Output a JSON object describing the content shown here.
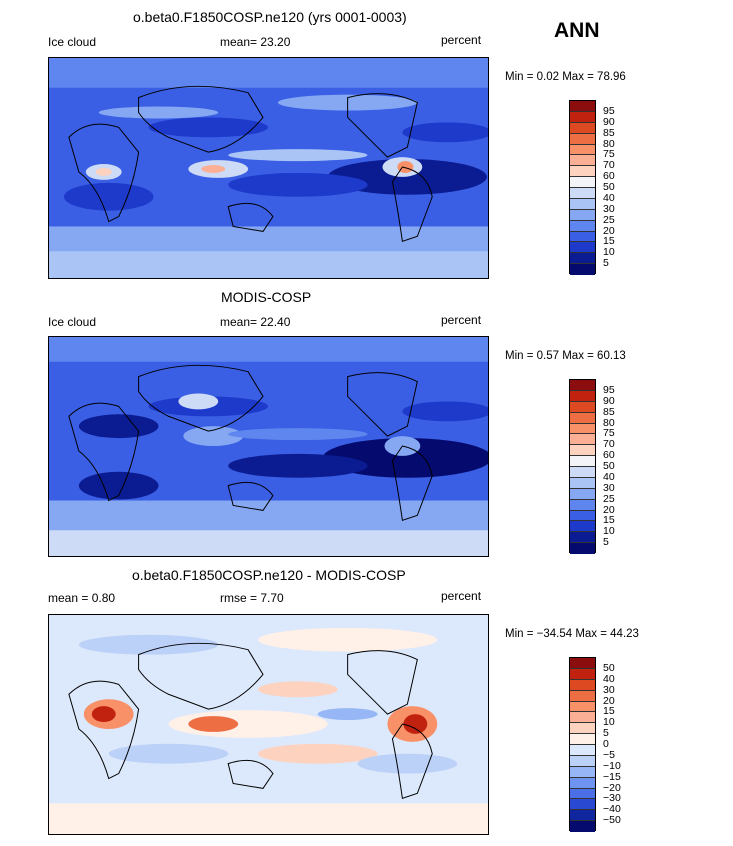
{
  "season": "ANN",
  "panels": [
    {
      "title": "o.beta0.F1850COSP.ne120 (yrs 0001-0003)",
      "left_label": "Ice cloud",
      "center_label": "mean=  23.20",
      "right_label": "percent",
      "minmax": "Min =    0.02 Max =  78.96",
      "colorbar": {
        "labels": [
          "95",
          "90",
          "85",
          "80",
          "75",
          "70",
          "60",
          "50",
          "40",
          "30",
          "25",
          "20",
          "15",
          "10",
          "5"
        ],
        "colors": [
          "#8c0d0d",
          "#c1220f",
          "#dd4a22",
          "#ee6e43",
          "#f89068",
          "#fbb095",
          "#fdd2bf",
          "#f2f4f8",
          "#cddbf6",
          "#a9c4f5",
          "#86a8f3",
          "#5f85ee",
          "#3a5fe4",
          "#1d3acb",
          "#0b1c93",
          "#050b6e"
        ]
      }
    },
    {
      "title": "MODIS-COSP",
      "left_label": "Ice cloud",
      "center_label": "mean=  22.40",
      "right_label": "percent",
      "minmax": "Min =    0.57 Max =  60.13",
      "colorbar": {
        "labels": [
          "95",
          "90",
          "85",
          "80",
          "75",
          "70",
          "60",
          "50",
          "40",
          "30",
          "25",
          "20",
          "15",
          "10",
          "5"
        ],
        "colors": [
          "#8c0d0d",
          "#c1220f",
          "#dd4a22",
          "#ee6e43",
          "#f89068",
          "#fbb095",
          "#fdd2bf",
          "#f2f4f8",
          "#cddbf6",
          "#a9c4f5",
          "#86a8f3",
          "#5f85ee",
          "#3a5fe4",
          "#1d3acb",
          "#0b1c93",
          "#050b6e"
        ]
      }
    },
    {
      "title": "o.beta0.F1850COSP.ne120 - MODIS-COSP",
      "left_label": "mean =    0.80",
      "center_label": "rmse =    7.70",
      "right_label": "percent",
      "minmax": "Min = −34.54 Max =  44.23",
      "colorbar": {
        "labels": [
          "50",
          "40",
          "30",
          "20",
          "15",
          "10",
          "5",
          "0",
          "−5",
          "−10",
          "−15",
          "−20",
          "−30",
          "−40",
          "−50"
        ],
        "colors": [
          "#8c0d0d",
          "#c1220f",
          "#dd4a22",
          "#ee6e43",
          "#f89068",
          "#fbb095",
          "#fdd2bf",
          "#fff0e8",
          "#dce8fb",
          "#bcd1f8",
          "#97b6f5",
          "#6f93f0",
          "#4a6fe7",
          "#2a49d2",
          "#10269e",
          "#050b6e"
        ]
      }
    }
  ],
  "colors": {
    "deep_blue": "#0b1c93",
    "mid_blue": "#3a5fe4",
    "light_blue": "#a9c4f5",
    "pale": "#dce8fb",
    "warm": "#f89068",
    "hot": "#c1220f"
  }
}
